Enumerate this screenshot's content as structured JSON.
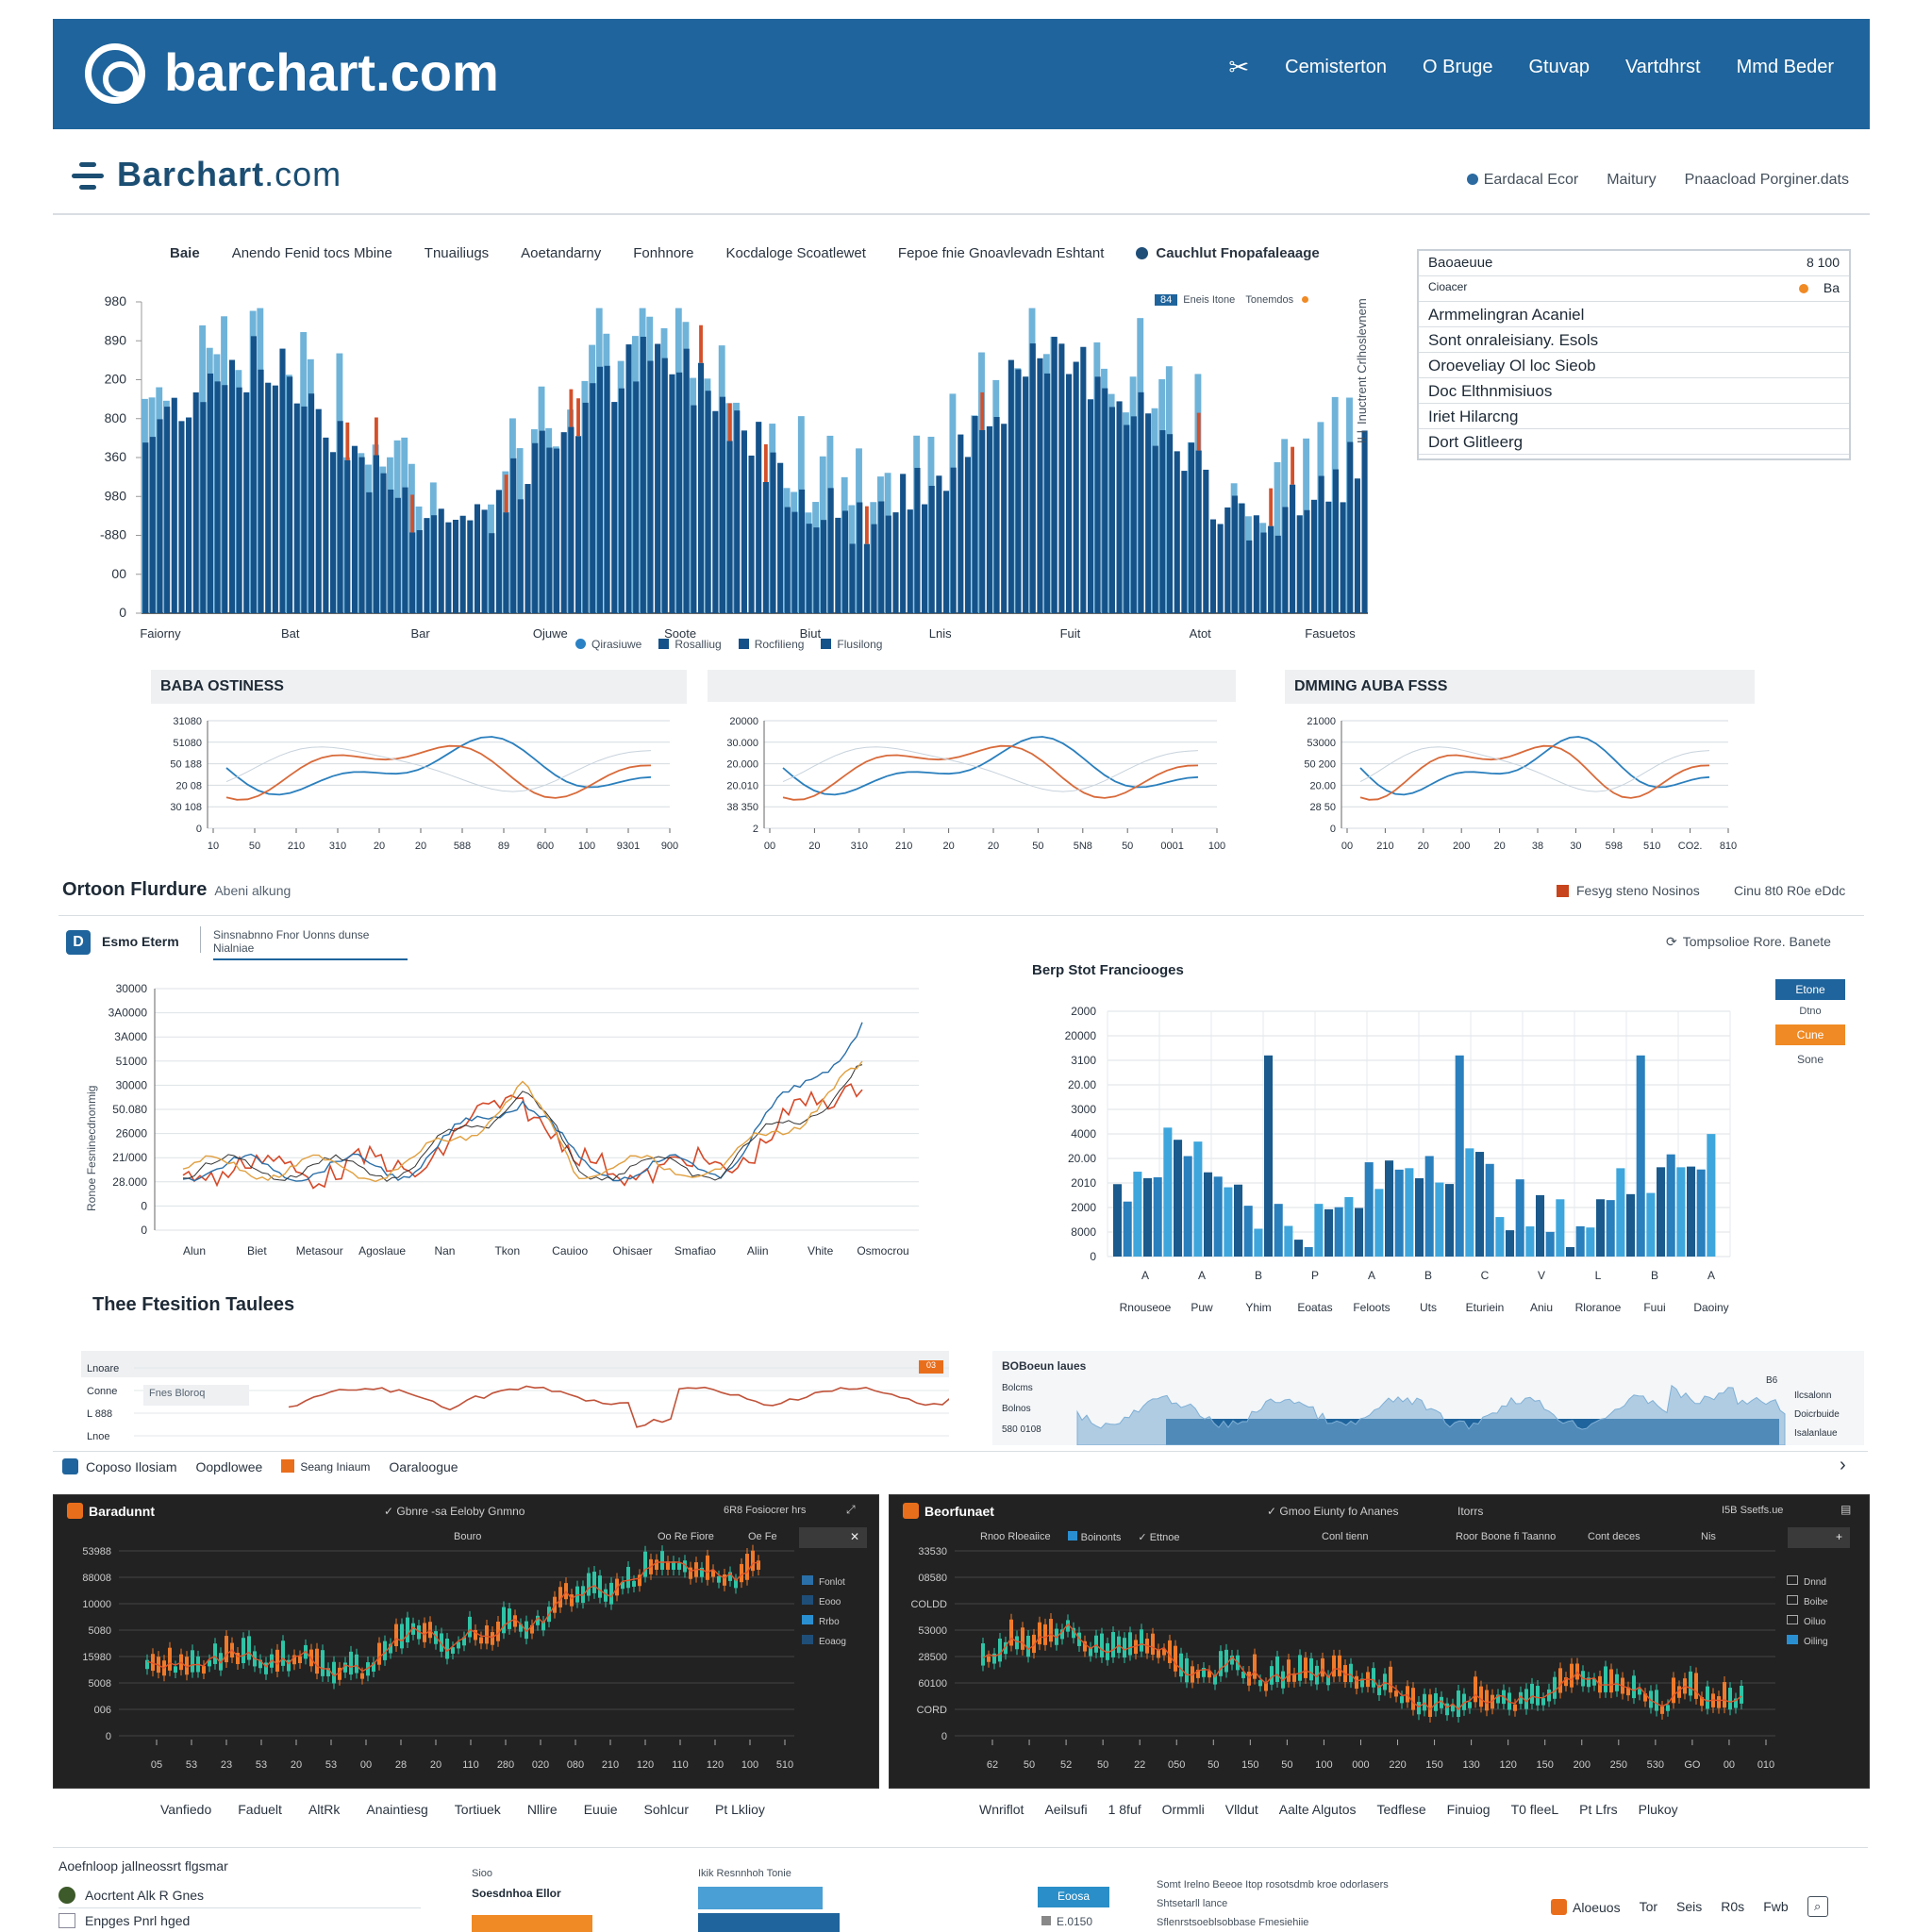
{
  "header": {
    "logo": "barchart.com",
    "nav": [
      "Cemisterton",
      "O Bruge",
      "Gtuvap",
      "Vartdhrst",
      "Mmd Beder"
    ]
  },
  "subheader": {
    "logo_brand": "Barchart",
    "logo_domain": ".com",
    "nav": [
      "Eardacal Ecor",
      "Maitury",
      "Pnaacload Porginer.dats"
    ]
  },
  "tabs": [
    "Baie",
    "Anendo Fenid tocs Mbine",
    "Tnuailiugs",
    "Aoetandarny",
    "Fonhnore",
    "Kocdaloge Scoatlewet",
    "Fepoe fnie Gnoavlevadn Eshtant",
    "Cauchlut Fnopafaleaage"
  ],
  "main_chart": {
    "x_labels": [
      "Faiorny",
      "Bat",
      "Bar",
      "Ojuwe",
      "Soote",
      "Biut",
      "Lnis",
      "Fuit",
      "Atot",
      "Fasuetos"
    ],
    "y_labels": [
      "0",
      "00",
      "-880",
      "980",
      "360",
      "800",
      "200",
      "890",
      "980"
    ],
    "legend": [
      "Qirasiuwe",
      "Rosalliug",
      "Rocfilieng",
      "Flusilong"
    ],
    "legend_top": [
      "Eneis Itone",
      "Tonemdos"
    ],
    "legend_top_badge": "84",
    "side_axis_label": "Inuctrent Crlhoslevnem",
    "side_axis_badge": "ILl",
    "colors": {
      "dark": "#155289",
      "light": "#6fb3d9",
      "accent": "#d4502a"
    }
  },
  "side_panel": {
    "header": "Baoaeuue",
    "header_value": "8 100",
    "sub_header": "Cioacer",
    "sub_value": "Ba",
    "rows": [
      "Armmelingran Acaniel",
      "Sont onraleisiany. Esols",
      "Oroeveliay Ol loc Sieob",
      "Doc Elthnmisiuos",
      "Iriet Hilarcng",
      "Dort Glitleerg"
    ]
  },
  "mini_charts": [
    {
      "title": "BABA OSTINESS",
      "y_labels": [
        "0",
        "30 108",
        "20 08",
        "50 188",
        "51080",
        "31080"
      ],
      "x_labels": [
        "10",
        "50",
        "210",
        "310",
        "20",
        "20",
        "588",
        "89",
        "600",
        "100",
        "9301",
        "900"
      ]
    },
    {
      "title": "",
      "y_labels": [
        "2",
        "38 350",
        "20.010",
        "20.000",
        "30.000",
        "20000"
      ],
      "x_labels": [
        "00",
        "20",
        "310",
        "210",
        "20",
        "20",
        "50",
        "5N8",
        "50",
        "0001",
        "100"
      ]
    },
    {
      "title": "DMMING AUBA FSSS",
      "y_labels": [
        "0",
        "28 50",
        "20.00",
        "50 200",
        "53000",
        "21000"
      ],
      "x_labels": [
        "00",
        "210",
        "20",
        "200",
        "20",
        "38",
        "30",
        "598",
        "510",
        "CO2.",
        "810"
      ]
    }
  ],
  "section2": {
    "title": "Ortoon Flurdure",
    "subtitle": "Abeni alkung",
    "right_legend": "Fesyg steno Nosinos",
    "right_text": "Cinu 8t0 R0e eDdc"
  },
  "line_panel": {
    "badge": "D",
    "tab_active": "Esmo Eterm",
    "tab_link": "Sinsnabnno Fnor Uonns dunse Nialniae",
    "y_labels": [
      "0",
      "0",
      "28.000",
      "21/000",
      "26000",
      "50.080",
      "30000",
      "51000",
      "3A000",
      "3A0000",
      "30000"
    ],
    "y_axis_label": "Ronoe Fesninecdnonmig",
    "x_labels": [
      "Alun",
      "Biet",
      "Metasour",
      "Agoslaue",
      "Nan",
      "Tkon",
      "Cauioo",
      "Ohisaer",
      "Smafiao",
      "Aliin",
      "Vhite",
      "Osmocrou"
    ]
  },
  "bar_panel": {
    "title": "Berp Stot Franciooges",
    "top_right": "Tompsolioe Rore. Banete",
    "y_labels": [
      "0",
      "8000",
      "2000",
      "2010",
      "20.00",
      "4000",
      "3000",
      "20.00",
      "3100",
      "20000",
      "2000"
    ],
    "x_letters": [
      "A",
      "A",
      "B",
      "P",
      "A",
      "B",
      "C",
      "V",
      "L",
      "B",
      "A"
    ],
    "x_labels": [
      "Rnouseoe",
      "Puw",
      "Yhim",
      "Eoatas",
      "Feloots",
      "Uts",
      "Eturiein",
      "Aniu",
      "Rloranoe",
      "Fuui",
      "Daoiny"
    ],
    "buttons": [
      "Etone",
      "Dtno",
      "Cune",
      "Sone"
    ],
    "colors": {
      "dark": "#1a5a8c",
      "mid": "#2a7fbd",
      "light": "#3ea6dc"
    }
  },
  "section3": {
    "title": "Thee Ftesition Taulees"
  },
  "strip_left": {
    "y_labels": [
      "Lnoare",
      "Conne",
      "L 888",
      "Lnoe"
    ],
    "box_label": "Fnes Bloroq",
    "badge": "03"
  },
  "strip_right": {
    "title": "BOBoeun laues",
    "y_labels": [
      "Bolcms",
      "Bolnos",
      "580 0108"
    ],
    "right_labels": [
      "Ilcsalonn",
      "Doicrbuide",
      "Isalanlaue"
    ],
    "top_right": "B6"
  },
  "toolbar": {
    "items": [
      "Coposo Ilosiam",
      "Oopdlowee",
      "Seang Iniaum",
      "Oaraloogue"
    ]
  },
  "dark_panels": [
    {
      "title": "Baradunnt",
      "subtitle": "Gbnre -sa Eeloby Gnmno",
      "right": "6R8 Fosiocrer hrs",
      "sub_left": "Bouro",
      "sub_right": "Oo Re Fiore",
      "sub_right2": "Oe Fe",
      "y_labels": [
        "0",
        "006",
        "5008",
        "15980",
        "5080",
        "10000",
        "88008",
        "53988"
      ],
      "x_labels": [
        "05",
        "53",
        "23",
        "53",
        "20",
        "53",
        "00",
        "28",
        "20",
        "110",
        "280",
        "020",
        "080",
        "210",
        "120",
        "110",
        "120",
        "100",
        "510"
      ],
      "legend": [
        "Fonlot",
        "Eooo",
        "Rrbo",
        "Eoaog"
      ],
      "footer": [
        "Vanfiedo",
        "Faduelt",
        "AltRk",
        "Anaintiesg",
        "Tortiuek",
        "Nllire",
        "Euuie",
        "Sohlcur",
        "Pt Lklioy"
      ]
    },
    {
      "title": "Beorfunaet",
      "subtitle": "Gmoo Eiunty fo Ananes",
      "sub_note": "Itorrs",
      "right": "I5B Ssetfs.ue",
      "sub_items": [
        "Rnoo Rloeaiice",
        "Boinonts",
        "Ettnoe"
      ],
      "sub_right": "Conl tienn",
      "sub_right2": "Roor Boone fi Taanno",
      "sub_right3": "Cont deces",
      "sub_right4": "Nis",
      "y_labels": [
        "0",
        "CORD",
        "60100",
        "28500",
        "53000",
        "COLDD",
        "08580",
        "33530"
      ],
      "x_labels": [
        "62",
        "50",
        "52",
        "50",
        "22",
        "050",
        "50",
        "150",
        "50",
        "100",
        "000",
        "220",
        "150",
        "130",
        "120",
        "150",
        "200",
        "250",
        "530",
        "GO",
        "00",
        "010"
      ],
      "legend": [
        "Dnnd",
        "Boibe",
        "Oiluo",
        "Oiling"
      ],
      "footer": [
        "Wnriflot",
        "Aeilsufi",
        "1 8fuf",
        "Ormmli",
        "Vlldut",
        "Aalte Algutos",
        "Tedflese",
        "Finuiog",
        "T0 fleeL",
        "Pt Lfrs",
        "Plukoy"
      ]
    }
  ],
  "bottom": {
    "title": "Aoefnloop jallneossrt flgsmar",
    "items": [
      "Aocrtent Alk R Gnes",
      "Enpges Pnrl hged"
    ],
    "mid_label": "Sioo",
    "mid_sub": "Soesdnhoa Ellor",
    "mid_chart_title": "Ikik Resnnhoh Tonie",
    "button": "Eoosa",
    "button_sub": "E.0150",
    "right_text": "Somt Irelno Beeoe Itop rosotsdmb kroe odorlasers",
    "right_sub": "Shtsetarll lance",
    "right_sub2": "Sflenrstsoeblsobbase Fmesiehiie",
    "right_nav": [
      "Aloeuos",
      "Tor",
      "Seis",
      "R0s",
      "Fwb"
    ]
  }
}
